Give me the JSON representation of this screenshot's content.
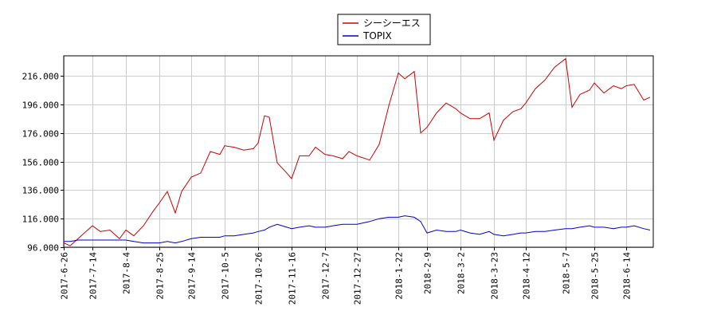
{
  "chart_data": {
    "type": "line",
    "title": "",
    "xlabel": "",
    "ylabel": "",
    "ylim": [
      96,
      230
    ],
    "y_ticks": [
      96,
      116,
      136,
      156,
      176,
      196,
      216
    ],
    "y_tick_labels": [
      "96.000",
      "116.000",
      "136.000",
      "156.000",
      "176.000",
      "196.000",
      "216.000"
    ],
    "x_ticks": [
      "2017-6-26",
      "2017-7-14",
      "2017-8-4",
      "2017-8-25",
      "2017-9-14",
      "2017-10-5",
      "2017-10-26",
      "2017-11-16",
      "2017-12-7",
      "2017-12-27",
      "2018-1-22",
      "2018-2-9",
      "2018-3-2",
      "2018-3-23",
      "2018-4-12",
      "2018-5-7",
      "2018-5-25",
      "2018-6-14"
    ],
    "x_range": [
      "2017-6-26",
      "2018-7-1"
    ],
    "grid": true,
    "legend": {
      "placement": "top-center"
    },
    "series": [
      {
        "name": "シーシーエス",
        "color": "#cc0000",
        "x": [
          "2017-6-26",
          "2017-6-30",
          "2017-7-5",
          "2017-7-10",
          "2017-7-14",
          "2017-7-19",
          "2017-7-25",
          "2017-7-31",
          "2017-8-4",
          "2017-8-9",
          "2017-8-15",
          "2017-8-21",
          "2017-8-25",
          "2017-8-30",
          "2017-9-4",
          "2017-9-8",
          "2017-9-14",
          "2017-9-20",
          "2017-9-26",
          "2017-10-2",
          "2017-10-5",
          "2017-10-11",
          "2017-10-17",
          "2017-10-23",
          "2017-10-26",
          "2017-10-30",
          "2017-11-2",
          "2017-11-7",
          "2017-11-13",
          "2017-11-16",
          "2017-11-21",
          "2017-11-27",
          "2017-12-1",
          "2017-12-7",
          "2017-12-12",
          "2017-12-18",
          "2017-12-22",
          "2017-12-27",
          "2018-1-4",
          "2018-1-10",
          "2018-1-16",
          "2018-1-22",
          "2018-1-26",
          "2018-2-1",
          "2018-2-5",
          "2018-2-9",
          "2018-2-15",
          "2018-2-21",
          "2018-2-27",
          "2018-3-2",
          "2018-3-8",
          "2018-3-14",
          "2018-3-20",
          "2018-3-23",
          "2018-3-29",
          "2018-4-4",
          "2018-4-9",
          "2018-4-12",
          "2018-4-18",
          "2018-4-24",
          "2018-4-30",
          "2018-5-7",
          "2018-5-11",
          "2018-5-16",
          "2018-5-22",
          "2018-5-25",
          "2018-5-31",
          "2018-6-6",
          "2018-6-11",
          "2018-6-14",
          "2018-6-19",
          "2018-6-25",
          "2018-6-29"
        ],
        "values": [
          99,
          97,
          102,
          107,
          111,
          107,
          108,
          102,
          108,
          104,
          111,
          121,
          127,
          135,
          120,
          135,
          145,
          148,
          163,
          161,
          167,
          166,
          164,
          165,
          169,
          188,
          187,
          155,
          148,
          144,
          160,
          160,
          166,
          161,
          160,
          158,
          163,
          160,
          157,
          168,
          195,
          218,
          214,
          219,
          176,
          180,
          190,
          197,
          193,
          190,
          186,
          186,
          190,
          171,
          185,
          191,
          193,
          197,
          207,
          213,
          222,
          228,
          194,
          203,
          206,
          211,
          204,
          209,
          207,
          209,
          210,
          199,
          201
        ]
      },
      {
        "name": "TOPIX",
        "color": "#0000cc",
        "x": [
          "2017-6-26",
          "2017-6-30",
          "2017-7-5",
          "2017-7-10",
          "2017-7-14",
          "2017-7-19",
          "2017-7-25",
          "2017-7-31",
          "2017-8-4",
          "2017-8-9",
          "2017-8-15",
          "2017-8-21",
          "2017-8-25",
          "2017-8-30",
          "2017-9-4",
          "2017-9-8",
          "2017-9-14",
          "2017-9-20",
          "2017-9-26",
          "2017-10-2",
          "2017-10-5",
          "2017-10-11",
          "2017-10-17",
          "2017-10-23",
          "2017-10-26",
          "2017-10-30",
          "2017-11-2",
          "2017-11-7",
          "2017-11-13",
          "2017-11-16",
          "2017-11-21",
          "2017-11-27",
          "2017-12-1",
          "2017-12-7",
          "2017-12-12",
          "2017-12-18",
          "2017-12-22",
          "2017-12-27",
          "2018-1-4",
          "2018-1-10",
          "2018-1-16",
          "2018-1-22",
          "2018-1-26",
          "2018-2-1",
          "2018-2-5",
          "2018-2-9",
          "2018-2-15",
          "2018-2-21",
          "2018-2-27",
          "2018-3-2",
          "2018-3-8",
          "2018-3-14",
          "2018-3-20",
          "2018-3-23",
          "2018-3-29",
          "2018-4-4",
          "2018-4-9",
          "2018-4-12",
          "2018-4-18",
          "2018-4-24",
          "2018-4-30",
          "2018-5-7",
          "2018-5-11",
          "2018-5-16",
          "2018-5-22",
          "2018-5-25",
          "2018-5-31",
          "2018-6-6",
          "2018-6-11",
          "2018-6-14",
          "2018-6-19",
          "2018-6-25",
          "2018-6-29"
        ],
        "values": [
          100,
          100,
          101,
          101,
          101,
          101,
          101,
          101,
          101,
          100,
          99,
          99,
          99,
          100,
          99,
          100,
          102,
          103,
          103,
          103,
          104,
          104,
          105,
          106,
          107,
          108,
          110,
          112,
          110,
          109,
          110,
          111,
          110,
          110,
          111,
          112,
          112,
          112,
          114,
          116,
          117,
          117,
          118,
          117,
          114,
          106,
          108,
          107,
          107,
          108,
          106,
          105,
          107,
          105,
          104,
          105,
          106,
          106,
          107,
          107,
          108,
          109,
          109,
          110,
          111,
          110,
          110,
          109,
          110,
          110,
          111,
          109,
          108
        ]
      }
    ]
  }
}
